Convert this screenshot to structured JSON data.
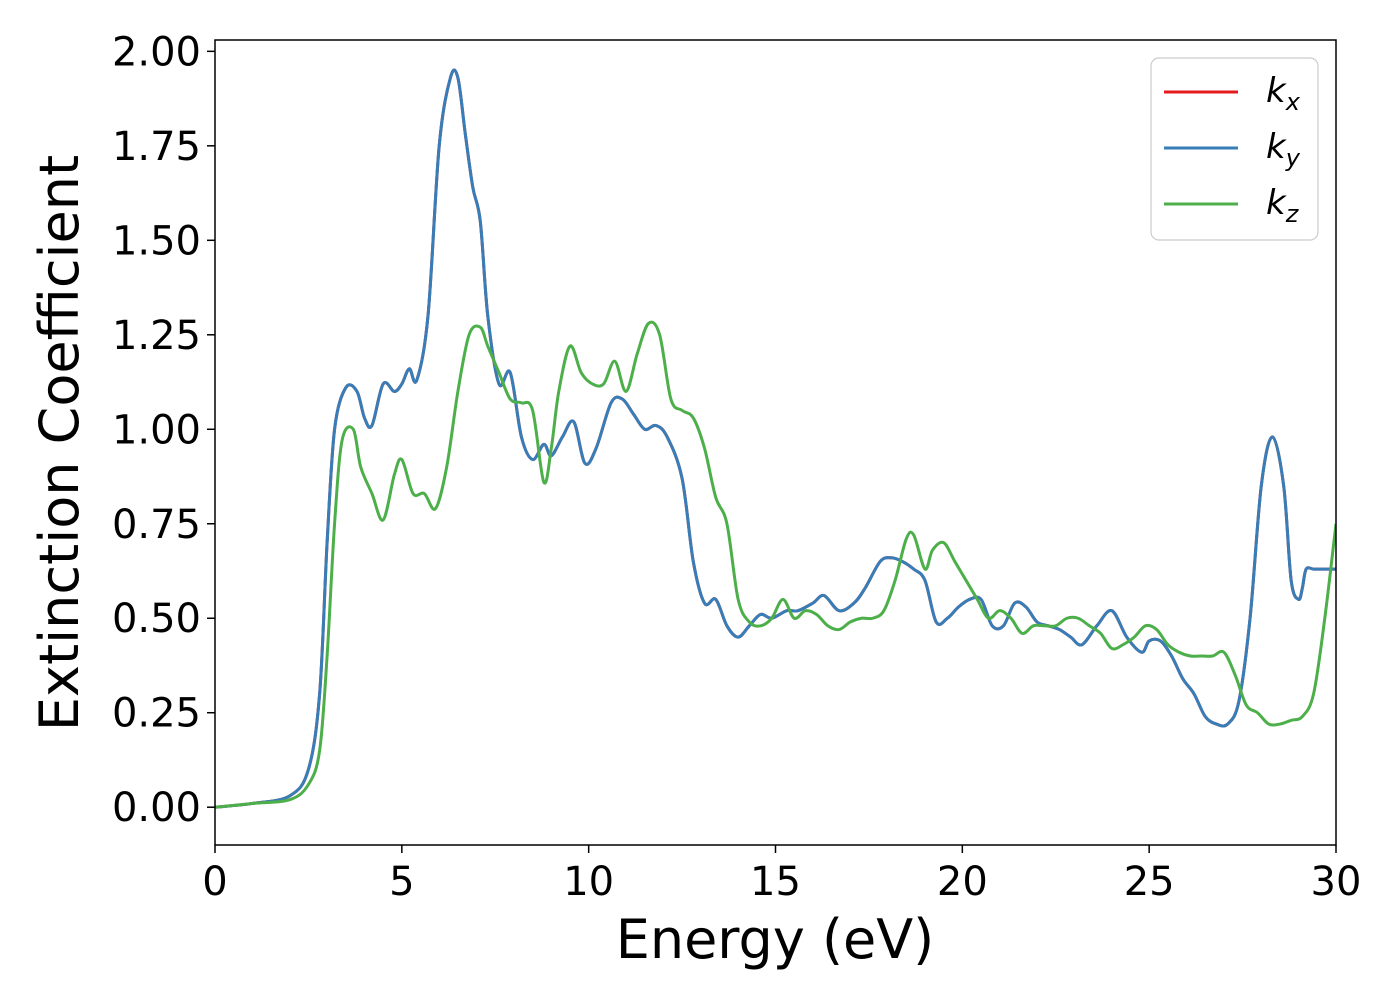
{
  "chart_data": {
    "type": "line",
    "xlabel": "Energy (eV)",
    "ylabel": "Extinction Coefficient",
    "xlim": [
      0,
      30
    ],
    "ylim": [
      -0.1,
      2.03
    ],
    "xticks": [
      "0",
      "5",
      "10",
      "15",
      "20",
      "25",
      "30"
    ],
    "yticks": [
      "0.00",
      "0.25",
      "0.50",
      "0.75",
      "1.00",
      "1.25",
      "1.50",
      "1.75",
      "2.00"
    ],
    "grid": false,
    "legend_position": "top-right",
    "series": [
      {
        "name": "k_x",
        "label_main": "k",
        "label_sub": "x",
        "color": "#e41a1c",
        "x": [
          0,
          1,
          2,
          2.5,
          2.8,
          3.0,
          3.2,
          3.5,
          3.8,
          4.0,
          4.2,
          4.5,
          4.8,
          5.0,
          5.2,
          5.4,
          5.7,
          6.0,
          6.3,
          6.5,
          6.7,
          6.9,
          7.1,
          7.3,
          7.6,
          7.9,
          8.2,
          8.5,
          8.8,
          9.0,
          9.3,
          9.6,
          9.9,
          10.2,
          10.6,
          10.9,
          11.2,
          11.5,
          11.8,
          12.1,
          12.5,
          12.8,
          13.1,
          13.4,
          13.7,
          14.0,
          14.3,
          14.6,
          14.9,
          15.3,
          15.6,
          16.0,
          16.3,
          16.7,
          17.1,
          17.4,
          17.8,
          18.1,
          18.4,
          18.7,
          19.0,
          19.3,
          19.6,
          19.9,
          20.2,
          20.5,
          20.8,
          21.1,
          21.4,
          21.7,
          22.0,
          22.3,
          22.6,
          22.9,
          23.2,
          23.6,
          24.0,
          24.4,
          24.8,
          25.0,
          25.3,
          25.6,
          25.9,
          26.2,
          26.5,
          26.8,
          27.1,
          27.4,
          27.7,
          28.0,
          28.3,
          28.6,
          28.8,
          29.0,
          29.1,
          29.2,
          29.4,
          29.6,
          29.8,
          30
        ],
        "y": [
          0.0,
          0.01,
          0.03,
          0.1,
          0.3,
          0.7,
          1.0,
          1.11,
          1.1,
          1.03,
          1.01,
          1.12,
          1.1,
          1.12,
          1.16,
          1.13,
          1.3,
          1.75,
          1.93,
          1.93,
          1.78,
          1.64,
          1.55,
          1.3,
          1.12,
          1.15,
          0.98,
          0.92,
          0.96,
          0.93,
          0.98,
          1.02,
          0.91,
          0.95,
          1.07,
          1.08,
          1.04,
          1.0,
          1.01,
          0.98,
          0.87,
          0.65,
          0.54,
          0.55,
          0.48,
          0.45,
          0.48,
          0.51,
          0.5,
          0.52,
          0.52,
          0.54,
          0.56,
          0.52,
          0.54,
          0.58,
          0.65,
          0.66,
          0.65,
          0.63,
          0.6,
          0.49,
          0.5,
          0.53,
          0.55,
          0.55,
          0.48,
          0.48,
          0.54,
          0.53,
          0.49,
          0.48,
          0.47,
          0.45,
          0.43,
          0.48,
          0.52,
          0.45,
          0.41,
          0.44,
          0.44,
          0.4,
          0.34,
          0.3,
          0.24,
          0.22,
          0.22,
          0.28,
          0.5,
          0.85,
          0.98,
          0.85,
          0.6,
          0.55,
          0.58,
          0.63,
          0.63,
          0.63,
          0.63,
          0.63
        ]
      },
      {
        "name": "k_y",
        "label_main": "k",
        "label_sub": "y",
        "color": "#377eb8",
        "x": [
          0,
          1,
          2,
          2.5,
          2.8,
          3.0,
          3.2,
          3.5,
          3.8,
          4.0,
          4.2,
          4.5,
          4.8,
          5.0,
          5.2,
          5.4,
          5.7,
          6.0,
          6.3,
          6.5,
          6.7,
          6.9,
          7.1,
          7.3,
          7.6,
          7.9,
          8.2,
          8.5,
          8.8,
          9.0,
          9.3,
          9.6,
          9.9,
          10.2,
          10.6,
          10.9,
          11.2,
          11.5,
          11.8,
          12.1,
          12.5,
          12.8,
          13.1,
          13.4,
          13.7,
          14.0,
          14.3,
          14.6,
          14.9,
          15.3,
          15.6,
          16.0,
          16.3,
          16.7,
          17.1,
          17.4,
          17.8,
          18.1,
          18.4,
          18.7,
          19.0,
          19.3,
          19.6,
          19.9,
          20.2,
          20.5,
          20.8,
          21.1,
          21.4,
          21.7,
          22.0,
          22.3,
          22.6,
          22.9,
          23.2,
          23.6,
          24.0,
          24.4,
          24.8,
          25.0,
          25.3,
          25.6,
          25.9,
          26.2,
          26.5,
          26.8,
          27.1,
          27.4,
          27.7,
          28.0,
          28.3,
          28.6,
          28.8,
          29.0,
          29.1,
          29.2,
          29.4,
          29.6,
          29.8,
          30
        ],
        "y": [
          0.0,
          0.01,
          0.03,
          0.1,
          0.3,
          0.7,
          1.0,
          1.11,
          1.1,
          1.03,
          1.01,
          1.12,
          1.1,
          1.12,
          1.16,
          1.13,
          1.3,
          1.75,
          1.93,
          1.93,
          1.78,
          1.64,
          1.55,
          1.3,
          1.12,
          1.15,
          0.98,
          0.92,
          0.96,
          0.93,
          0.98,
          1.02,
          0.91,
          0.95,
          1.07,
          1.08,
          1.04,
          1.0,
          1.01,
          0.98,
          0.87,
          0.65,
          0.54,
          0.55,
          0.48,
          0.45,
          0.48,
          0.51,
          0.5,
          0.52,
          0.52,
          0.54,
          0.56,
          0.52,
          0.54,
          0.58,
          0.65,
          0.66,
          0.65,
          0.63,
          0.6,
          0.49,
          0.5,
          0.53,
          0.55,
          0.55,
          0.48,
          0.48,
          0.54,
          0.53,
          0.49,
          0.48,
          0.47,
          0.45,
          0.43,
          0.48,
          0.52,
          0.45,
          0.41,
          0.44,
          0.44,
          0.4,
          0.34,
          0.3,
          0.24,
          0.22,
          0.22,
          0.28,
          0.5,
          0.85,
          0.98,
          0.85,
          0.6,
          0.55,
          0.58,
          0.63,
          0.63,
          0.63,
          0.63,
          0.63
        ]
      },
      {
        "name": "k_z",
        "label_main": "k",
        "label_sub": "z",
        "color": "#4daf4a",
        "x": [
          0,
          1,
          2,
          2.5,
          2.8,
          3.0,
          3.2,
          3.4,
          3.7,
          3.9,
          4.2,
          4.5,
          4.8,
          5.0,
          5.3,
          5.6,
          5.9,
          6.2,
          6.5,
          6.8,
          7.1,
          7.3,
          7.6,
          7.9,
          8.2,
          8.5,
          8.8,
          9.0,
          9.2,
          9.5,
          9.8,
          10.1,
          10.4,
          10.7,
          11.0,
          11.3,
          11.6,
          11.9,
          12.2,
          12.5,
          12.8,
          13.1,
          13.4,
          13.7,
          14.0,
          14.3,
          14.6,
          14.9,
          15.2,
          15.5,
          15.8,
          16.1,
          16.4,
          16.7,
          17.0,
          17.3,
          17.6,
          17.9,
          18.2,
          18.5,
          18.7,
          19.0,
          19.2,
          19.5,
          19.8,
          20.1,
          20.4,
          20.7,
          21.0,
          21.3,
          21.6,
          21.9,
          22.2,
          22.5,
          22.8,
          23.1,
          23.4,
          23.7,
          24.0,
          24.3,
          24.6,
          24.9,
          25.2,
          25.5,
          25.8,
          26.1,
          26.4,
          26.7,
          27.0,
          27.3,
          27.6,
          27.9,
          28.2,
          28.5,
          28.8,
          29.1,
          29.4,
          29.7,
          30
        ],
        "y": [
          0.0,
          0.01,
          0.02,
          0.06,
          0.15,
          0.4,
          0.75,
          0.97,
          1.0,
          0.9,
          0.83,
          0.76,
          0.88,
          0.92,
          0.83,
          0.83,
          0.79,
          0.9,
          1.1,
          1.25,
          1.27,
          1.22,
          1.15,
          1.08,
          1.07,
          1.05,
          0.86,
          0.95,
          1.1,
          1.22,
          1.15,
          1.12,
          1.12,
          1.18,
          1.1,
          1.2,
          1.28,
          1.25,
          1.08,
          1.05,
          1.03,
          0.95,
          0.82,
          0.75,
          0.55,
          0.49,
          0.48,
          0.5,
          0.55,
          0.5,
          0.52,
          0.51,
          0.48,
          0.47,
          0.49,
          0.5,
          0.5,
          0.52,
          0.6,
          0.71,
          0.72,
          0.63,
          0.68,
          0.7,
          0.65,
          0.6,
          0.55,
          0.5,
          0.52,
          0.5,
          0.46,
          0.48,
          0.48,
          0.48,
          0.5,
          0.5,
          0.48,
          0.46,
          0.42,
          0.43,
          0.45,
          0.48,
          0.47,
          0.43,
          0.41,
          0.4,
          0.4,
          0.4,
          0.41,
          0.35,
          0.27,
          0.25,
          0.22,
          0.22,
          0.23,
          0.24,
          0.3,
          0.5,
          0.75
        ]
      }
    ]
  }
}
